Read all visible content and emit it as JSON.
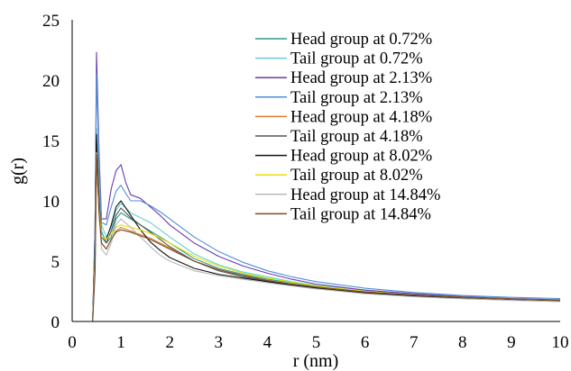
{
  "chart_data": {
    "type": "line",
    "title": "",
    "xlabel": "r (nm)",
    "ylabel": "g(r)",
    "xlim": [
      0,
      10
    ],
    "ylim": [
      0,
      25
    ],
    "xticks": [
      "0",
      "1",
      "2",
      "3",
      "4",
      "5",
      "6",
      "7",
      "8",
      "9",
      "10"
    ],
    "yticks": [
      "0",
      "5",
      "10",
      "15",
      "20",
      "25"
    ],
    "grid": false,
    "legend_position": "top-right",
    "series": [
      {
        "name": "Head group at 0.72%",
        "color": "#2e9c8f",
        "x": [
          0.42,
          0.47,
          0.5,
          0.55,
          0.6,
          0.7,
          0.8,
          0.9,
          1.0,
          1.2,
          1.4,
          1.6,
          1.8,
          2.0,
          2.5,
          3.0,
          3.5,
          4.0,
          4.5,
          5.0,
          6.0,
          7.0,
          8.0,
          9.0,
          10.0
        ],
        "y": [
          0,
          6,
          14.5,
          10,
          7.5,
          6.5,
          7.0,
          8.5,
          9.0,
          8.5,
          8.0,
          7.5,
          7.0,
          6.5,
          5.2,
          4.4,
          3.9,
          3.5,
          3.2,
          2.9,
          2.5,
          2.2,
          2.0,
          1.85,
          1.7
        ]
      },
      {
        "name": "Tail group at 0.72%",
        "color": "#66d0cf",
        "x": [
          0.42,
          0.47,
          0.5,
          0.55,
          0.6,
          0.7,
          0.8,
          0.9,
          1.0,
          1.2,
          1.4,
          1.6,
          1.8,
          2.0,
          2.5,
          3.0,
          3.5,
          4.0,
          4.5,
          5.0,
          6.0,
          7.0,
          8.0,
          9.0,
          10.0
        ],
        "y": [
          0,
          7,
          16.0,
          11,
          8.0,
          7.0,
          7.8,
          9.2,
          9.8,
          9.0,
          8.6,
          8.2,
          7.6,
          7.0,
          5.6,
          4.7,
          4.1,
          3.7,
          3.3,
          3.0,
          2.6,
          2.3,
          2.1,
          1.9,
          1.8
        ]
      },
      {
        "name": "Head group at 2.13%",
        "color": "#6a3bb0",
        "x": [
          0.42,
          0.47,
          0.5,
          0.55,
          0.6,
          0.7,
          0.8,
          0.9,
          1.0,
          1.1,
          1.2,
          1.4,
          1.6,
          1.8,
          2.0,
          2.5,
          3.0,
          3.5,
          4.0,
          4.5,
          5.0,
          6.0,
          7.0,
          8.0,
          9.0,
          10.0
        ],
        "y": [
          0,
          8,
          22.3,
          14,
          8.5,
          8.5,
          11.0,
          12.5,
          13.0,
          11.5,
          10.5,
          10.2,
          9.5,
          8.8,
          8.0,
          6.5,
          5.4,
          4.6,
          4.0,
          3.5,
          3.1,
          2.6,
          2.3,
          2.05,
          1.9,
          1.8
        ]
      },
      {
        "name": "Tail group at 2.13%",
        "color": "#4f8ed8",
        "x": [
          0.42,
          0.47,
          0.5,
          0.55,
          0.6,
          0.7,
          0.8,
          0.9,
          1.0,
          1.1,
          1.2,
          1.4,
          1.6,
          1.8,
          2.0,
          2.5,
          3.0,
          3.5,
          4.0,
          4.5,
          5.0,
          6.0,
          7.0,
          8.0,
          9.0,
          10.0
        ],
        "y": [
          0,
          8,
          20.5,
          13,
          8.2,
          8.0,
          9.5,
          10.8,
          11.3,
          10.6,
          10.0,
          10.0,
          9.6,
          9.1,
          8.5,
          7.0,
          5.8,
          4.9,
          4.2,
          3.7,
          3.3,
          2.75,
          2.4,
          2.15,
          2.0,
          1.9
        ]
      },
      {
        "name": "Head group at 4.18%",
        "color": "#e07b2c",
        "x": [
          0.42,
          0.47,
          0.5,
          0.55,
          0.6,
          0.7,
          0.8,
          0.9,
          1.0,
          1.2,
          1.4,
          1.6,
          1.8,
          2.0,
          2.5,
          3.0,
          3.5,
          4.0,
          4.5,
          5.0,
          6.0,
          7.0,
          8.0,
          9.0,
          10.0
        ],
        "y": [
          0,
          5,
          13.5,
          9,
          6.5,
          6.0,
          6.8,
          7.5,
          7.8,
          7.5,
          7.2,
          6.9,
          6.5,
          6.1,
          5.0,
          4.3,
          3.8,
          3.4,
          3.1,
          2.85,
          2.45,
          2.2,
          2.0,
          1.85,
          1.75
        ]
      },
      {
        "name": "Tail group at 4.18%",
        "color": "#555555",
        "x": [
          0.42,
          0.47,
          0.5,
          0.55,
          0.6,
          0.7,
          0.8,
          0.9,
          1.0,
          1.2,
          1.4,
          1.6,
          1.8,
          2.0,
          2.5,
          3.0,
          3.5,
          4.0,
          4.5,
          5.0,
          6.0,
          7.0,
          8.0,
          9.0,
          10.0
        ],
        "y": [
          0,
          6,
          15.0,
          10,
          7.0,
          6.5,
          7.5,
          8.8,
          9.4,
          8.6,
          8.0,
          7.4,
          6.8,
          6.2,
          5.0,
          4.2,
          3.7,
          3.35,
          3.05,
          2.8,
          2.4,
          2.15,
          1.95,
          1.8,
          1.7
        ]
      },
      {
        "name": "Head group at 8.02%",
        "color": "#111111",
        "x": [
          0.42,
          0.47,
          0.5,
          0.55,
          0.6,
          0.7,
          0.8,
          0.9,
          1.0,
          1.2,
          1.4,
          1.6,
          1.8,
          2.0,
          2.5,
          3.0,
          3.5,
          4.0,
          4.5,
          5.0,
          6.0,
          7.0,
          8.0,
          9.0,
          10.0
        ],
        "y": [
          0,
          6,
          15.5,
          10,
          7.0,
          6.8,
          8.0,
          9.5,
          10.0,
          8.8,
          7.6,
          6.6,
          5.9,
          5.3,
          4.4,
          3.9,
          3.6,
          3.3,
          3.0,
          2.75,
          2.35,
          2.1,
          1.9,
          1.78,
          1.68
        ]
      },
      {
        "name": "Tail group at 8.02%",
        "color": "#e8e000",
        "x": [
          0.42,
          0.47,
          0.5,
          0.55,
          0.6,
          0.7,
          0.8,
          0.9,
          1.0,
          1.2,
          1.4,
          1.6,
          1.8,
          2.0,
          2.5,
          3.0,
          3.5,
          4.0,
          4.5,
          5.0,
          6.0,
          7.0,
          8.0,
          9.0,
          10.0
        ],
        "y": [
          0,
          5,
          14.0,
          9.5,
          7.0,
          6.8,
          7.2,
          7.8,
          8.0,
          7.8,
          7.6,
          7.3,
          6.9,
          6.5,
          5.4,
          4.6,
          4.0,
          3.6,
          3.25,
          2.95,
          2.5,
          2.2,
          2.0,
          1.85,
          1.75
        ]
      },
      {
        "name": "Head group at 14.84%",
        "color": "#b8b8b8",
        "x": [
          0.42,
          0.47,
          0.5,
          0.55,
          0.6,
          0.7,
          0.8,
          0.9,
          1.0,
          1.2,
          1.4,
          1.6,
          1.8,
          2.0,
          2.5,
          3.0,
          3.5,
          4.0,
          4.5,
          5.0,
          6.0,
          7.0,
          8.0,
          9.0,
          10.0
        ],
        "y": [
          0,
          5,
          14.0,
          9,
          6.0,
          5.5,
          6.5,
          8.0,
          8.5,
          7.8,
          7.0,
          6.2,
          5.5,
          5.0,
          4.2,
          3.8,
          3.5,
          3.2,
          2.95,
          2.7,
          2.3,
          2.05,
          1.88,
          1.75,
          1.65
        ]
      },
      {
        "name": "Tail group at 14.84%",
        "color": "#7a4a2a",
        "x": [
          0.42,
          0.47,
          0.5,
          0.55,
          0.6,
          0.7,
          0.8,
          0.9,
          1.0,
          1.2,
          1.4,
          1.6,
          1.8,
          2.0,
          2.5,
          3.0,
          3.5,
          4.0,
          4.5,
          5.0,
          6.0,
          7.0,
          8.0,
          9.0,
          10.0
        ],
        "y": [
          0,
          4,
          13.8,
          9.0,
          6.5,
          6.0,
          6.8,
          7.4,
          7.6,
          7.4,
          7.1,
          6.8,
          6.4,
          6.0,
          5.0,
          4.3,
          3.8,
          3.4,
          3.1,
          2.85,
          2.45,
          2.2,
          2.0,
          1.85,
          1.75
        ]
      }
    ]
  }
}
